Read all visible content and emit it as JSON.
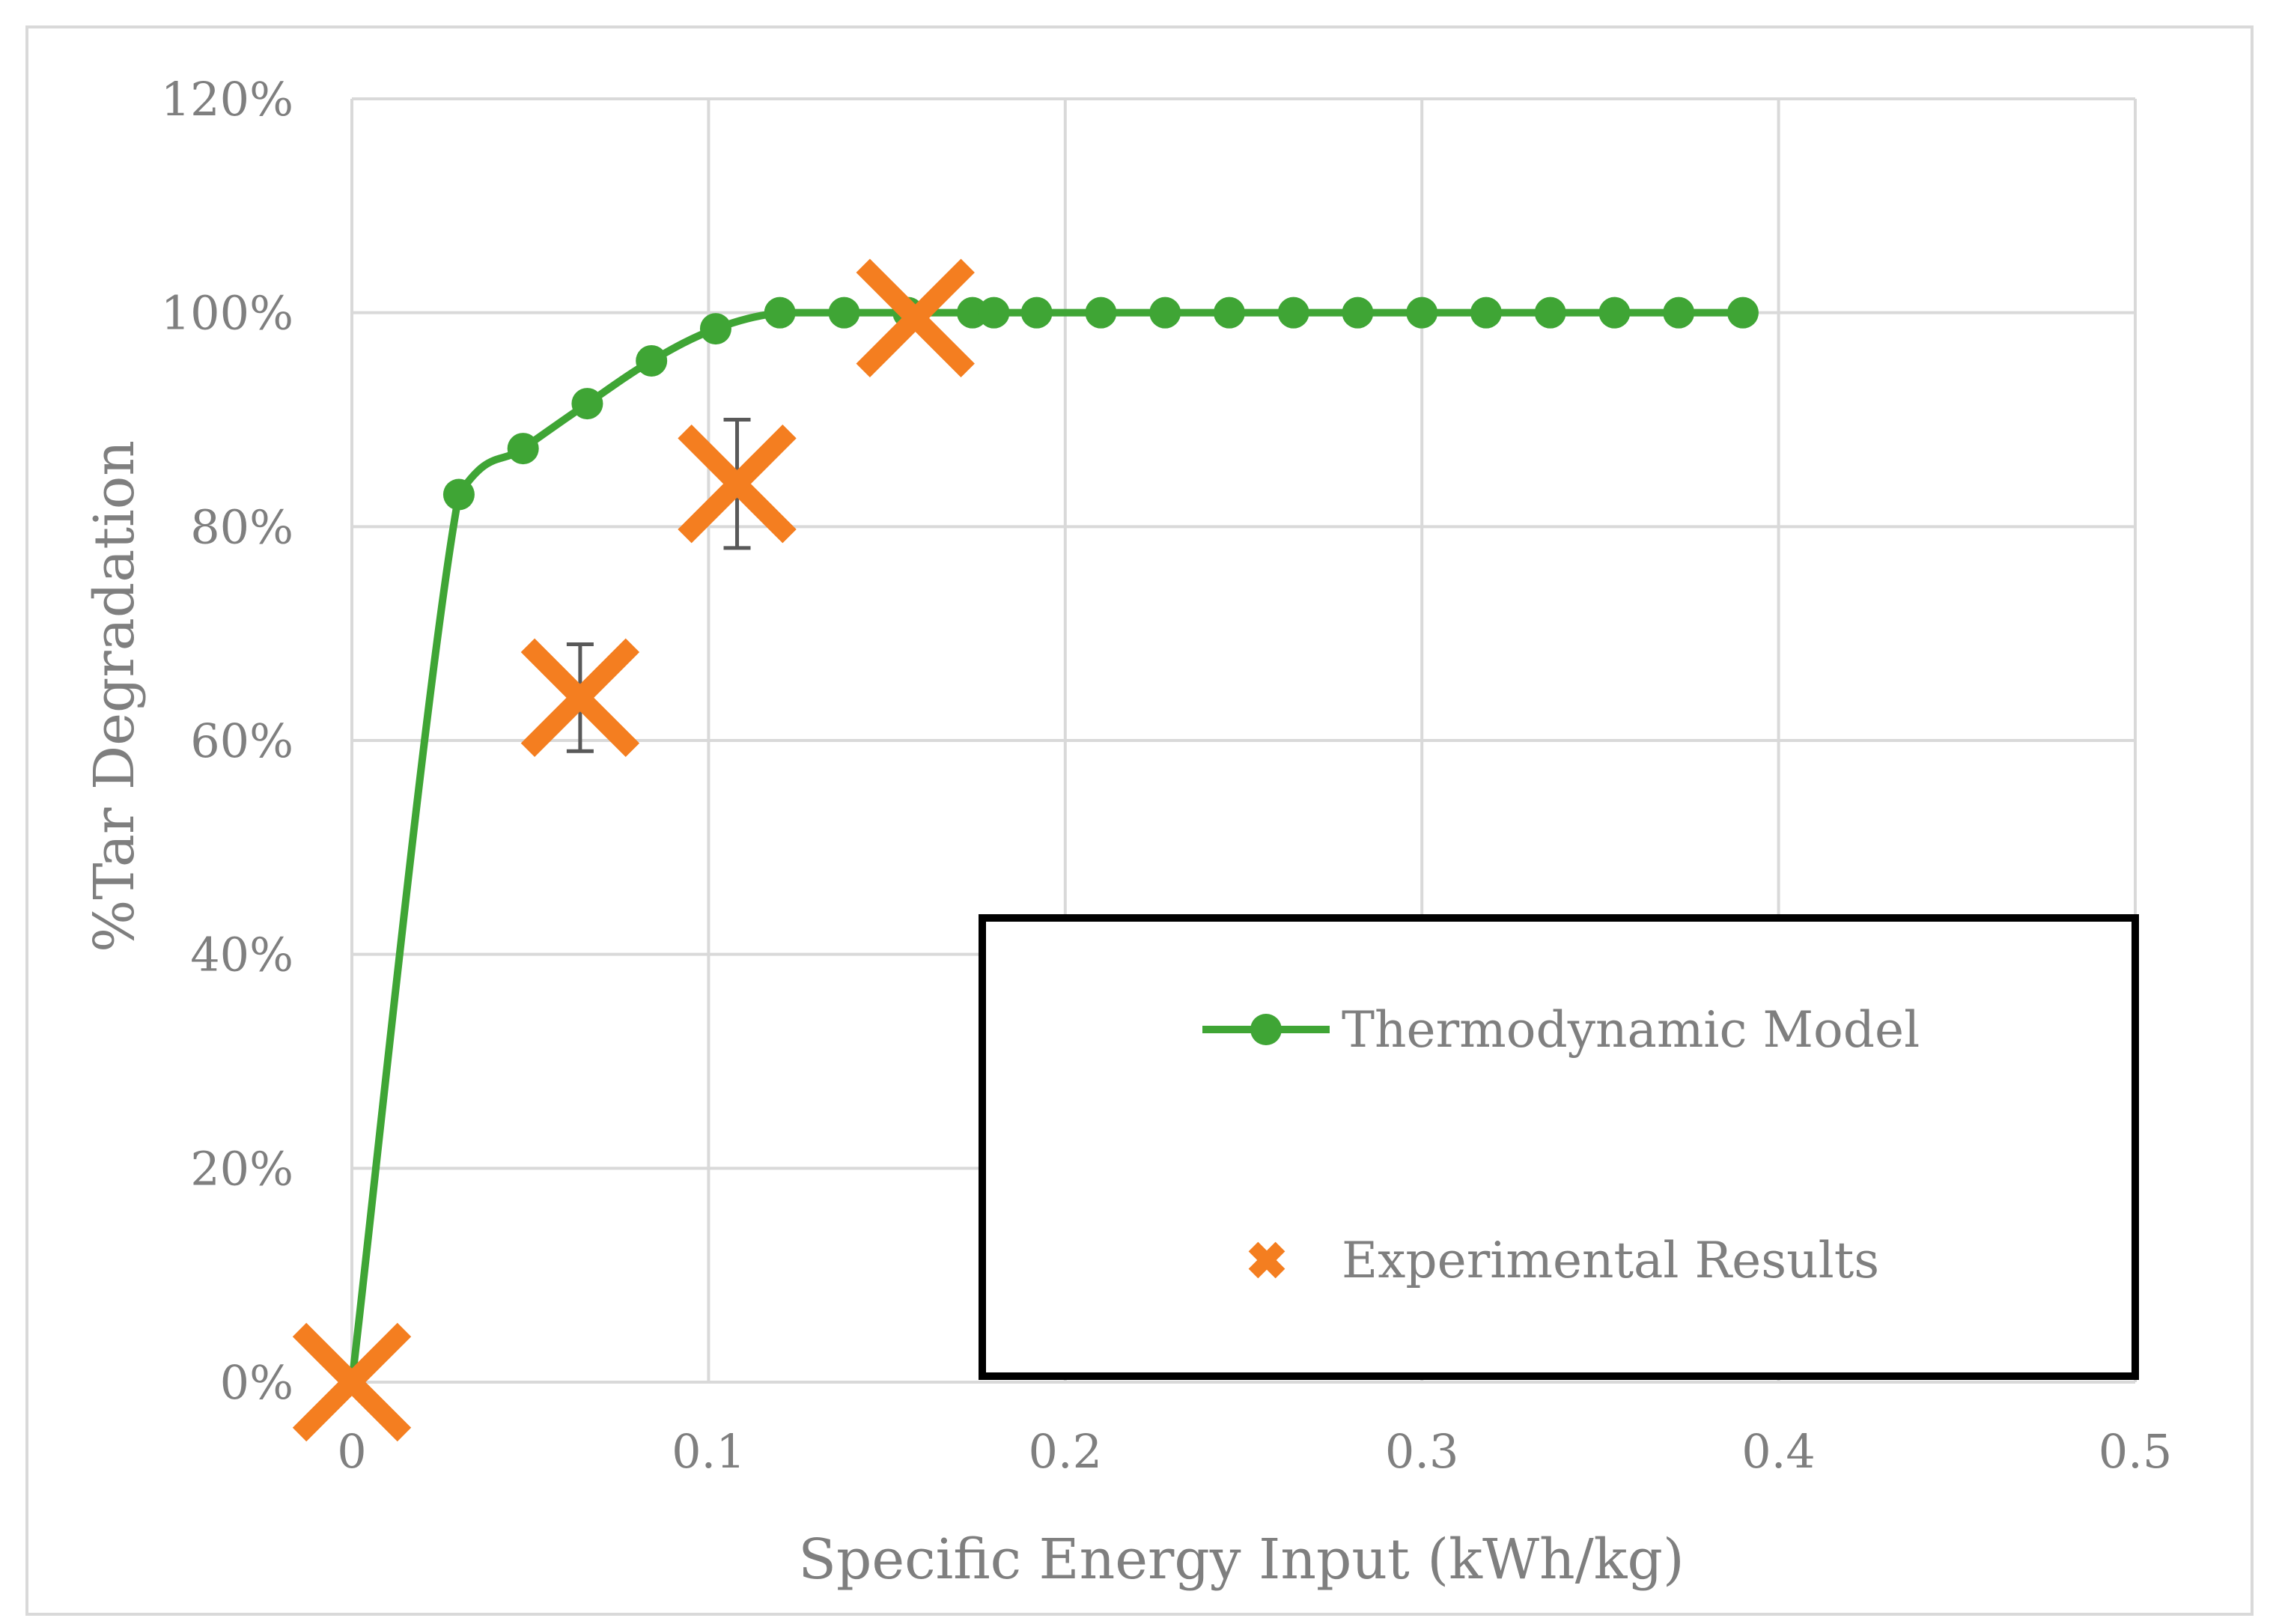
{
  "chart_data": {
    "type": "scatter",
    "title": "",
    "xlabel": "Specific Energy Input (kWh/kg)",
    "ylabel": "%Tar Degradation",
    "xlim": [
      0,
      0.5
    ],
    "ylim": [
      0,
      1.2
    ],
    "grid": true,
    "x_ticks": [
      0,
      0.1,
      0.2,
      0.3,
      0.4,
      0.5
    ],
    "x_tick_labels": [
      "0",
      "0.1",
      "0.2",
      "0.3",
      "0.4",
      "0.5"
    ],
    "y_ticks": [
      0,
      0.2,
      0.4,
      0.6,
      0.8,
      1.0,
      1.2
    ],
    "y_tick_labels": [
      "0%",
      "20%",
      "40%",
      "60%",
      "80%",
      "100%",
      "120%"
    ],
    "legend_position": "bottom-right",
    "series": [
      {
        "name": "Thermodynamic Model",
        "style": "line-with-markers",
        "color": "#3fa535",
        "points": [
          {
            "x": 0.0,
            "y": 0.0
          },
          {
            "x": 0.03,
            "y": 0.83
          },
          {
            "x": 0.048,
            "y": 0.873
          },
          {
            "x": 0.066,
            "y": 0.915
          },
          {
            "x": 0.084,
            "y": 0.955
          },
          {
            "x": 0.102,
            "y": 0.985
          },
          {
            "x": 0.12,
            "y": 1.0
          },
          {
            "x": 0.138,
            "y": 1.0
          },
          {
            "x": 0.156,
            "y": 1.0
          },
          {
            "x": 0.174,
            "y": 1.0
          },
          {
            "x": 0.18,
            "y": 1.0
          },
          {
            "x": 0.192,
            "y": 1.0
          },
          {
            "x": 0.21,
            "y": 1.0
          },
          {
            "x": 0.228,
            "y": 1.0
          },
          {
            "x": 0.246,
            "y": 1.0
          },
          {
            "x": 0.264,
            "y": 1.0
          },
          {
            "x": 0.282,
            "y": 1.0
          },
          {
            "x": 0.3,
            "y": 1.0
          },
          {
            "x": 0.318,
            "y": 1.0
          },
          {
            "x": 0.336,
            "y": 1.0
          },
          {
            "x": 0.354,
            "y": 1.0
          },
          {
            "x": 0.372,
            "y": 1.0
          },
          {
            "x": 0.39,
            "y": 1.0
          }
        ]
      },
      {
        "name": "Experimental Results",
        "style": "markers-x",
        "color": "#f47e20",
        "points": [
          {
            "x": 0.0,
            "y": 0.0
          },
          {
            "x": 0.064,
            "y": 0.64,
            "err_low": 0.59,
            "err_high": 0.69
          },
          {
            "x": 0.108,
            "y": 0.84,
            "err_low": 0.78,
            "err_high": 0.9
          },
          {
            "x": 0.158,
            "y": 0.995
          }
        ]
      }
    ]
  }
}
